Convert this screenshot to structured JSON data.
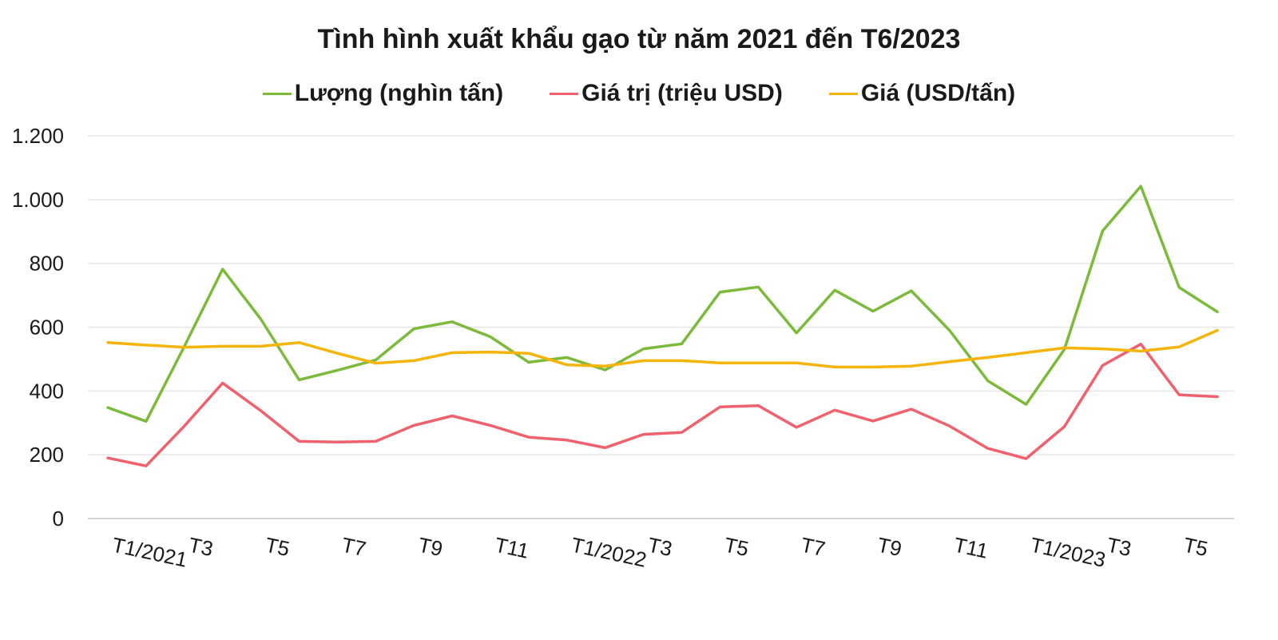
{
  "chart_data": {
    "type": "line",
    "title": "Tình hình xuất khẩu gạo từ năm 2021 đến T6/2023",
    "ylim": [
      0,
      1200
    ],
    "yticks": [
      0,
      200,
      400,
      600,
      800,
      1000,
      1200
    ],
    "ytick_labels": [
      "0",
      "200",
      "400",
      "600",
      "800",
      "1.000",
      "1.200"
    ],
    "grid": true,
    "legend_position": "top",
    "categories": [
      "T1/2021",
      "T2",
      "T3",
      "T4",
      "T5",
      "T6",
      "T7",
      "T8",
      "T9",
      "T10",
      "T11",
      "T12",
      "T1/2022",
      "T2",
      "T3",
      "T4",
      "T5",
      "T6",
      "T7",
      "T8",
      "T9",
      "T10",
      "T11",
      "T12",
      "T1/2023",
      "T2",
      "T3",
      "T4",
      "T5",
      "T6"
    ],
    "xtick_labels": [
      {
        "index": 0,
        "text": "T1/2021"
      },
      {
        "index": 2,
        "text": "T3"
      },
      {
        "index": 4,
        "text": "T5"
      },
      {
        "index": 6,
        "text": "T7"
      },
      {
        "index": 8,
        "text": "T9"
      },
      {
        "index": 10,
        "text": "T11"
      },
      {
        "index": 12,
        "text": "T1/2022"
      },
      {
        "index": 14,
        "text": "T3"
      },
      {
        "index": 16,
        "text": "T5"
      },
      {
        "index": 18,
        "text": "T7"
      },
      {
        "index": 20,
        "text": "T9"
      },
      {
        "index": 22,
        "text": "T11"
      },
      {
        "index": 24,
        "text": "T1/2023"
      },
      {
        "index": 26,
        "text": "T3"
      },
      {
        "index": 28,
        "text": "T5"
      }
    ],
    "series": [
      {
        "name": "Lượng (nghìn tấn)",
        "color": "#7cba3b",
        "values": [
          348,
          305,
          540,
          782,
          625,
          435,
          465,
          497,
          595,
          617,
          570,
          490,
          505,
          466,
          532,
          548,
          710,
          726,
          582,
          716,
          650,
          714,
          590,
          432,
          358,
          530,
          902,
          1042,
          725,
          648
        ]
      },
      {
        "name": "Giá trị (triệu USD)",
        "color": "#f0616e",
        "values": [
          190,
          165,
          290,
          425,
          338,
          242,
          240,
          242,
          292,
          322,
          292,
          255,
          246,
          222,
          264,
          270,
          350,
          354,
          286,
          340,
          306,
          343,
          290,
          220,
          188,
          288,
          480,
          547,
          388,
          382
        ]
      },
      {
        "name": "Giá (USD/tấn)",
        "color": "#f5b40a",
        "values": [
          552,
          544,
          537,
          540,
          540,
          552,
          518,
          487,
          495,
          520,
          522,
          518,
          482,
          478,
          495,
          495,
          488,
          488,
          488,
          475,
          475,
          478,
          492,
          505,
          520,
          535,
          532,
          525,
          538,
          590
        ]
      }
    ]
  }
}
